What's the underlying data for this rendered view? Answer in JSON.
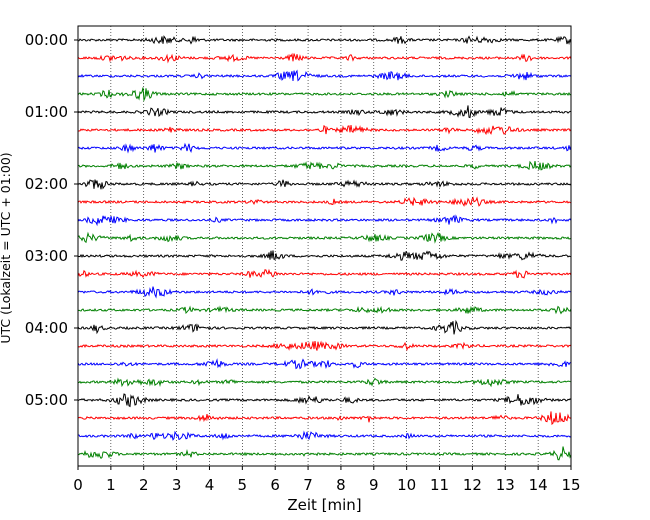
{
  "chart_data": {
    "type": "line",
    "title": "",
    "xlabel": "Zeit  [min]",
    "ylabel": "UTC (Lokalzeit = UTC + 01:00)",
    "xlim": [
      0,
      15
    ],
    "x_ticks": [
      "0",
      "1",
      "2",
      "3",
      "4",
      "5",
      "6",
      "7",
      "8",
      "9",
      "10",
      "11",
      "12",
      "13",
      "14",
      "15"
    ],
    "y_ticks": [
      "00:00",
      "01:00",
      "02:00",
      "03:00",
      "04:00",
      "05:00"
    ],
    "trace_interval_minutes": 15,
    "trace_count": 24,
    "trace_colors": [
      "#000000",
      "#ff0000",
      "#0000ff",
      "#008000"
    ],
    "grid": {
      "vertical": true,
      "style": "dotted"
    },
    "legend": "none"
  }
}
